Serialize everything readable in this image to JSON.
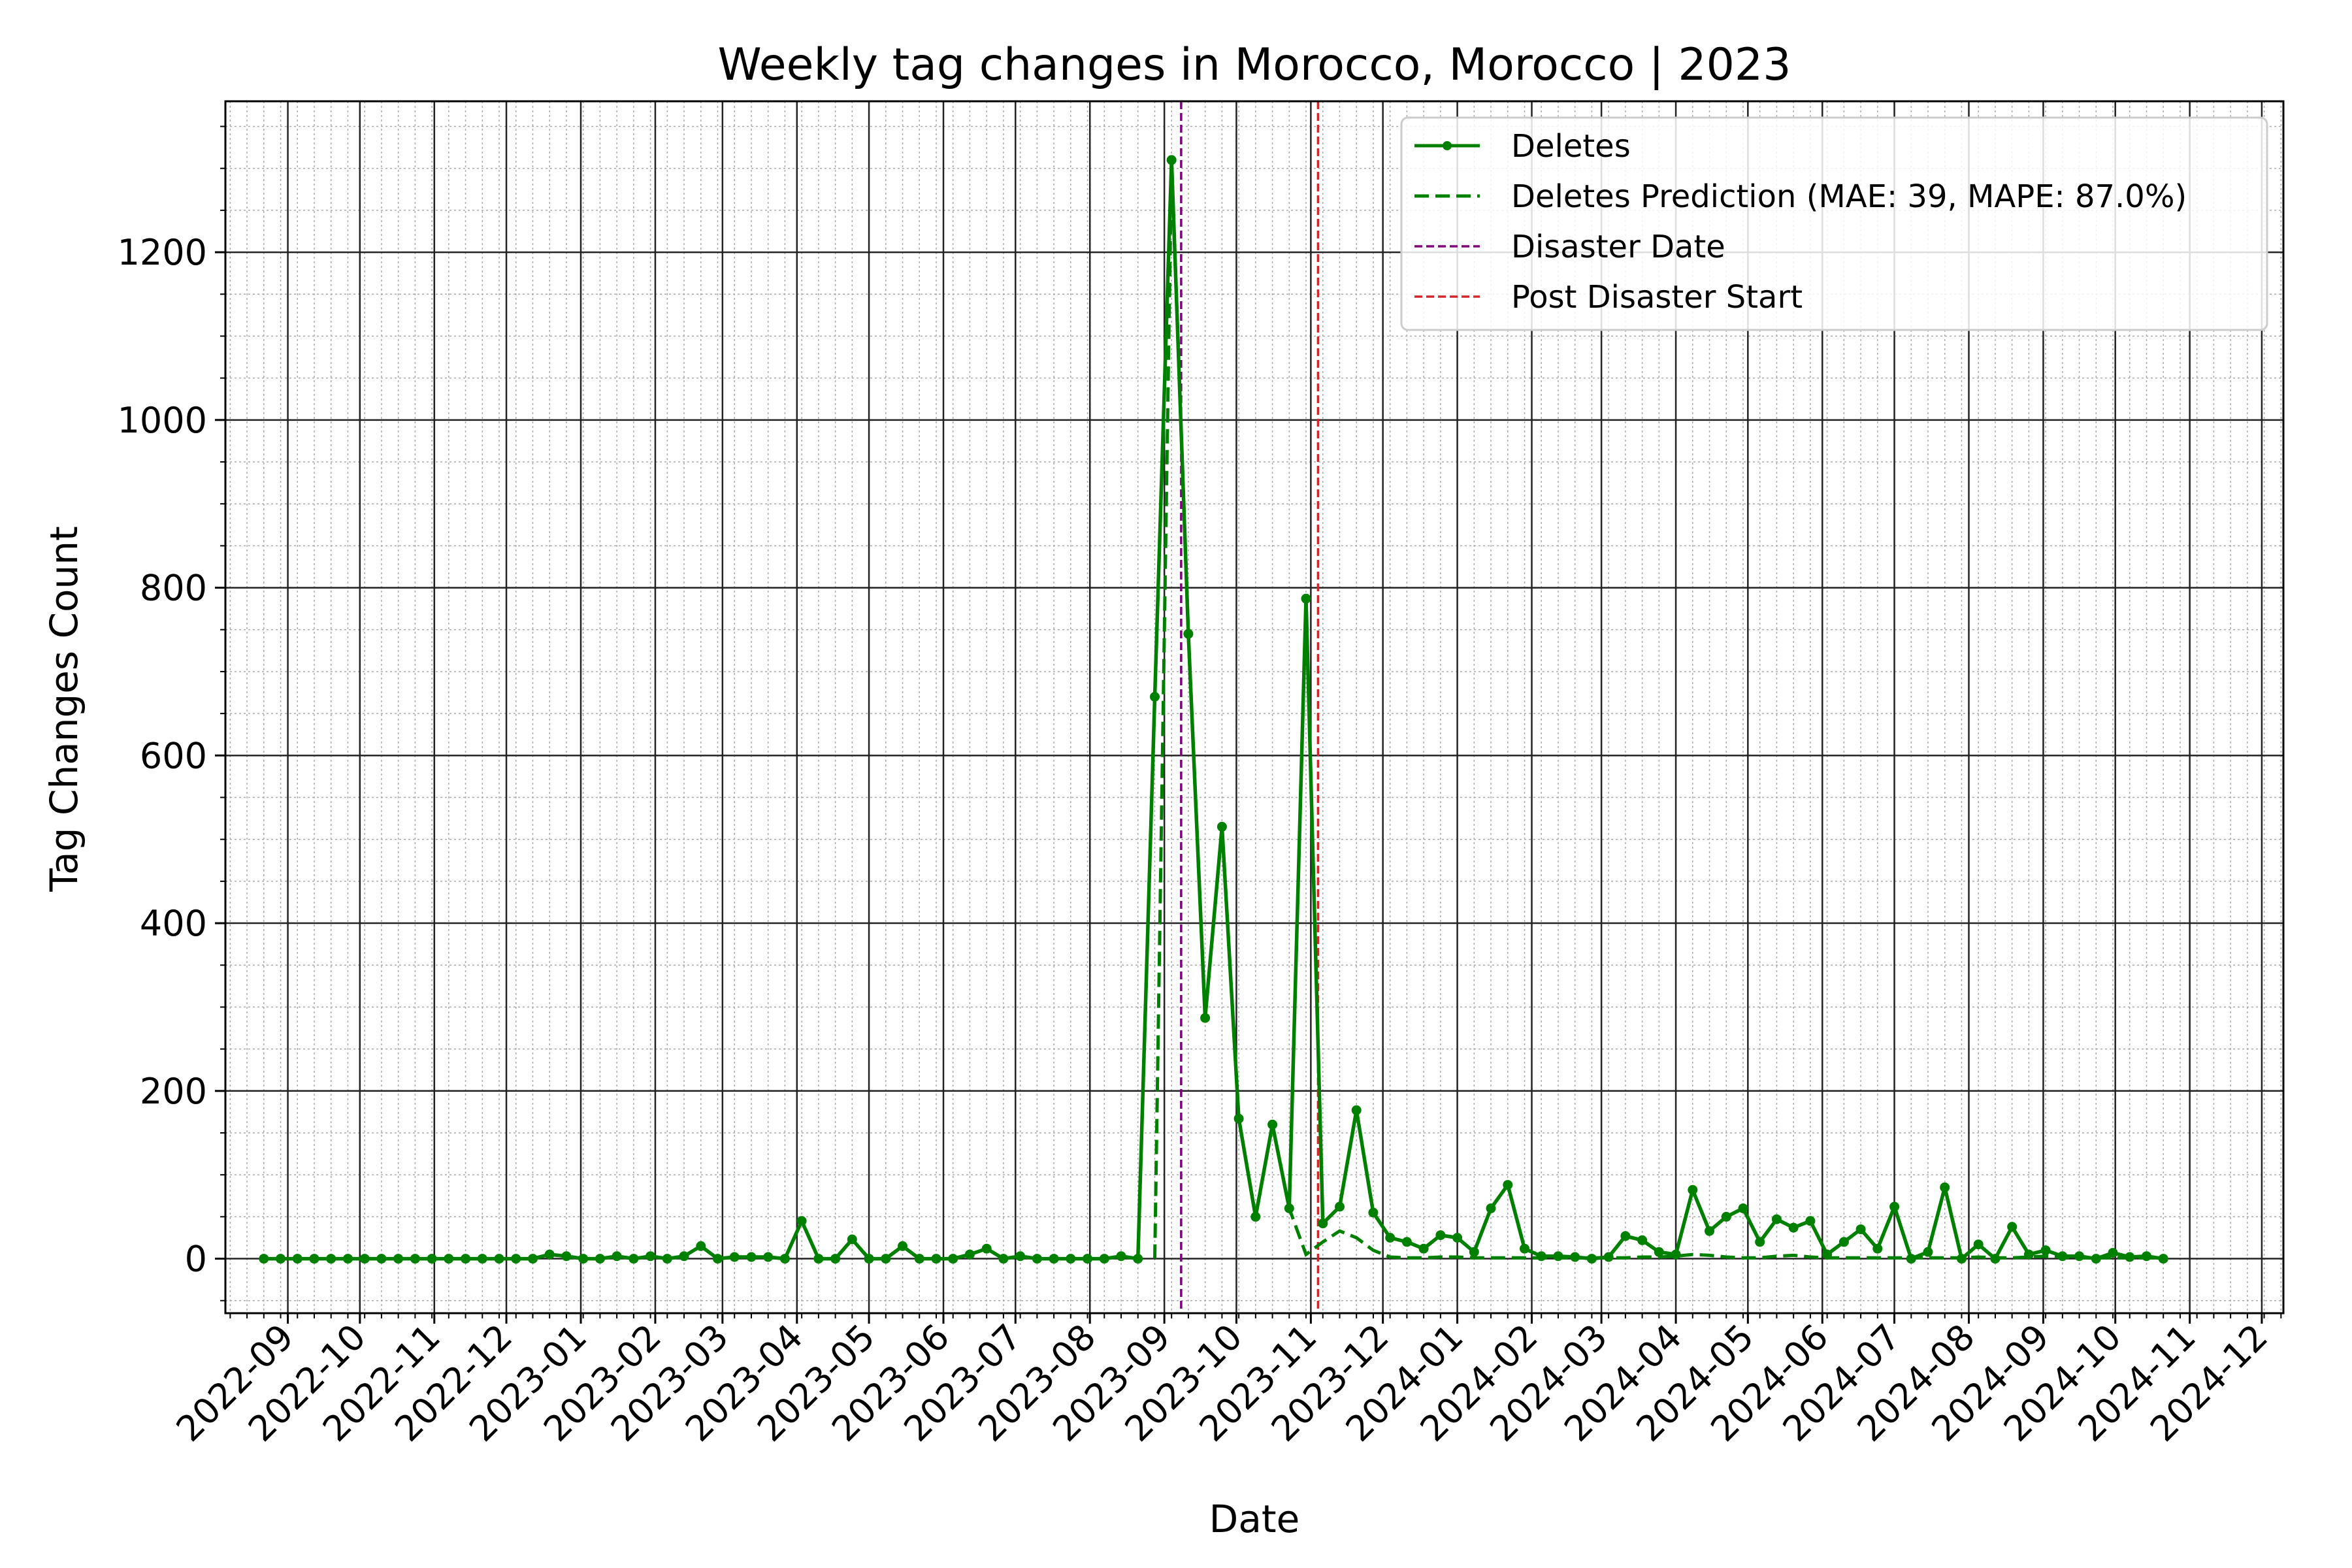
{
  "chart_data": {
    "type": "line",
    "title": "Weekly tag changes in Morocco, Morocco | 2023",
    "xlabel": "Date",
    "ylabel": "Tag Changes Count",
    "x_ticks": [
      "2022-09",
      "2022-10",
      "2022-11",
      "2022-12",
      "2023-01",
      "2023-02",
      "2023-03",
      "2023-04",
      "2023-05",
      "2023-06",
      "2023-07",
      "2023-08",
      "2023-09",
      "2023-10",
      "2023-11",
      "2023-12",
      "2024-01",
      "2024-02",
      "2024-03",
      "2024-04",
      "2024-05",
      "2024-06",
      "2024-07",
      "2024-08",
      "2024-09",
      "2024-10",
      "2024-11",
      "2024-12"
    ],
    "y_ticks": [
      0,
      200,
      400,
      600,
      800,
      1000,
      1200
    ],
    "xlim": [
      "2022-08-06",
      "2024-12-10"
    ],
    "ylim": [
      -65,
      1380
    ],
    "grid": true,
    "legend_position": "top-right",
    "colors": {
      "deletes": "#008000",
      "disaster": "#800080",
      "post": "#d62728"
    },
    "series": [
      {
        "name": "Deletes",
        "style": "solid-with-markers",
        "points": [
          [
            "2022-08-22",
            0
          ],
          [
            "2022-08-29",
            0
          ],
          [
            "2022-09-05",
            0
          ],
          [
            "2022-09-12",
            0
          ],
          [
            "2022-09-19",
            0
          ],
          [
            "2022-09-26",
            0
          ],
          [
            "2022-10-03",
            0
          ],
          [
            "2022-10-10",
            0
          ],
          [
            "2022-10-17",
            0
          ],
          [
            "2022-10-24",
            0
          ],
          [
            "2022-10-31",
            0
          ],
          [
            "2022-11-07",
            0
          ],
          [
            "2022-11-14",
            0
          ],
          [
            "2022-11-21",
            0
          ],
          [
            "2022-11-28",
            0
          ],
          [
            "2022-12-05",
            0
          ],
          [
            "2022-12-12",
            0
          ],
          [
            "2022-12-19",
            5
          ],
          [
            "2022-12-26",
            3
          ],
          [
            "2023-01-02",
            0
          ],
          [
            "2023-01-09",
            0
          ],
          [
            "2023-01-16",
            3
          ],
          [
            "2023-01-23",
            0
          ],
          [
            "2023-01-30",
            3
          ],
          [
            "2023-02-06",
            0
          ],
          [
            "2023-02-13",
            3
          ],
          [
            "2023-02-20",
            15
          ],
          [
            "2023-02-27",
            0
          ],
          [
            "2023-03-06",
            2
          ],
          [
            "2023-03-13",
            2
          ],
          [
            "2023-03-20",
            2
          ],
          [
            "2023-03-27",
            0
          ],
          [
            "2023-04-03",
            45
          ],
          [
            "2023-04-10",
            0
          ],
          [
            "2023-04-17",
            0
          ],
          [
            "2023-04-24",
            23
          ],
          [
            "2023-05-01",
            0
          ],
          [
            "2023-05-08",
            0
          ],
          [
            "2023-05-15",
            15
          ],
          [
            "2023-05-22",
            0
          ],
          [
            "2023-05-29",
            0
          ],
          [
            "2023-06-05",
            0
          ],
          [
            "2023-06-12",
            5
          ],
          [
            "2023-06-19",
            12
          ],
          [
            "2023-06-26",
            0
          ],
          [
            "2023-07-03",
            3
          ],
          [
            "2023-07-10",
            0
          ],
          [
            "2023-07-17",
            0
          ],
          [
            "2023-07-24",
            0
          ],
          [
            "2023-07-31",
            0
          ],
          [
            "2023-08-07",
            0
          ],
          [
            "2023-08-14",
            3
          ],
          [
            "2023-08-21",
            0
          ],
          [
            "2023-08-28",
            670
          ],
          [
            "2023-09-04",
            1310
          ],
          [
            "2023-09-11",
            745
          ],
          [
            "2023-09-18",
            287
          ],
          [
            "2023-09-25",
            515
          ],
          [
            "2023-10-02",
            167
          ],
          [
            "2023-10-09",
            50
          ],
          [
            "2023-10-16",
            160
          ],
          [
            "2023-10-23",
            60
          ],
          [
            "2023-10-30",
            787
          ],
          [
            "2023-11-06",
            42
          ],
          [
            "2023-11-13",
            62
          ],
          [
            "2023-11-20",
            177
          ],
          [
            "2023-11-27",
            55
          ],
          [
            "2023-12-04",
            25
          ],
          [
            "2023-12-11",
            20
          ],
          [
            "2023-12-18",
            12
          ],
          [
            "2023-12-25",
            28
          ],
          [
            "2024-01-01",
            25
          ],
          [
            "2024-01-08",
            8
          ],
          [
            "2024-01-15",
            60
          ],
          [
            "2024-01-22",
            88
          ],
          [
            "2024-01-29",
            12
          ],
          [
            "2024-02-05",
            3
          ],
          [
            "2024-02-12",
            3
          ],
          [
            "2024-02-19",
            2
          ],
          [
            "2024-02-26",
            0
          ],
          [
            "2024-03-04",
            2
          ],
          [
            "2024-03-11",
            27
          ],
          [
            "2024-03-18",
            22
          ],
          [
            "2024-03-25",
            8
          ],
          [
            "2024-04-01",
            5
          ],
          [
            "2024-04-08",
            82
          ],
          [
            "2024-04-15",
            33
          ],
          [
            "2024-04-22",
            50
          ],
          [
            "2024-04-29",
            60
          ],
          [
            "2024-05-06",
            20
          ],
          [
            "2024-05-13",
            47
          ],
          [
            "2024-05-20",
            37
          ],
          [
            "2024-05-27",
            45
          ],
          [
            "2024-06-03",
            5
          ],
          [
            "2024-06-10",
            20
          ],
          [
            "2024-06-17",
            35
          ],
          [
            "2024-06-24",
            12
          ],
          [
            "2024-07-01",
            62
          ],
          [
            "2024-07-08",
            0
          ],
          [
            "2024-07-15",
            8
          ],
          [
            "2024-07-22",
            85
          ],
          [
            "2024-07-29",
            0
          ],
          [
            "2024-08-05",
            17
          ],
          [
            "2024-08-12",
            0
          ],
          [
            "2024-08-19",
            38
          ],
          [
            "2024-08-26",
            5
          ],
          [
            "2024-09-02",
            10
          ],
          [
            "2024-09-09",
            3
          ],
          [
            "2024-09-16",
            3
          ],
          [
            "2024-09-23",
            0
          ],
          [
            "2024-09-30",
            7
          ],
          [
            "2024-10-07",
            2
          ],
          [
            "2024-10-14",
            3
          ],
          [
            "2024-10-21",
            0
          ]
        ]
      },
      {
        "name": "Deletes Prediction (MAE: 39, MAPE: 87.0%)",
        "style": "dashed",
        "points": [
          [
            "2023-08-28",
            0
          ],
          [
            "2023-09-04",
            1310
          ],
          [
            "2023-09-11",
            745
          ],
          [
            "2023-09-18",
            287
          ],
          [
            "2023-09-25",
            515
          ],
          [
            "2023-10-02",
            167
          ],
          [
            "2023-10-09",
            50
          ],
          [
            "2023-10-16",
            160
          ],
          [
            "2023-10-23",
            60
          ],
          [
            "2023-10-30",
            5
          ],
          [
            "2023-11-06",
            20
          ],
          [
            "2023-11-13",
            33
          ],
          [
            "2023-11-20",
            25
          ],
          [
            "2023-11-27",
            10
          ],
          [
            "2023-12-04",
            2
          ],
          [
            "2023-12-11",
            1
          ],
          [
            "2023-12-18",
            1
          ],
          [
            "2023-12-25",
            2
          ],
          [
            "2024-01-01",
            2
          ],
          [
            "2024-01-08",
            1
          ],
          [
            "2024-01-15",
            1
          ],
          [
            "2024-01-22",
            1
          ],
          [
            "2024-01-29",
            1
          ],
          [
            "2024-02-05",
            1
          ],
          [
            "2024-02-12",
            1
          ],
          [
            "2024-02-19",
            1
          ],
          [
            "2024-02-26",
            1
          ],
          [
            "2024-03-04",
            1
          ],
          [
            "2024-03-11",
            1
          ],
          [
            "2024-03-18",
            2
          ],
          [
            "2024-03-25",
            2
          ],
          [
            "2024-04-01",
            3
          ],
          [
            "2024-04-08",
            5
          ],
          [
            "2024-04-15",
            4
          ],
          [
            "2024-04-22",
            2
          ],
          [
            "2024-04-29",
            1
          ],
          [
            "2024-05-06",
            1
          ],
          [
            "2024-05-13",
            3
          ],
          [
            "2024-05-20",
            4
          ],
          [
            "2024-05-27",
            2
          ],
          [
            "2024-06-03",
            1
          ],
          [
            "2024-06-10",
            1
          ],
          [
            "2024-06-17",
            1
          ],
          [
            "2024-06-24",
            1
          ],
          [
            "2024-07-01",
            1
          ],
          [
            "2024-07-08",
            1
          ],
          [
            "2024-07-15",
            1
          ],
          [
            "2024-07-22",
            1
          ],
          [
            "2024-07-29",
            1
          ],
          [
            "2024-08-05",
            2
          ],
          [
            "2024-08-12",
            1
          ],
          [
            "2024-08-19",
            1
          ],
          [
            "2024-08-26",
            2
          ],
          [
            "2024-09-02",
            3
          ],
          [
            "2024-09-09",
            2
          ],
          [
            "2024-09-16",
            1
          ],
          [
            "2024-09-23",
            1
          ],
          [
            "2024-09-30",
            1
          ],
          [
            "2024-10-07",
            1
          ],
          [
            "2024-10-14",
            1
          ],
          [
            "2024-10-21",
            1
          ]
        ]
      }
    ],
    "vlines": [
      {
        "name": "Disaster Date",
        "x": "2023-09-08",
        "style": "dashed"
      },
      {
        "name": "Post Disaster Start",
        "x": "2023-11-04",
        "style": "dashed"
      }
    ]
  }
}
